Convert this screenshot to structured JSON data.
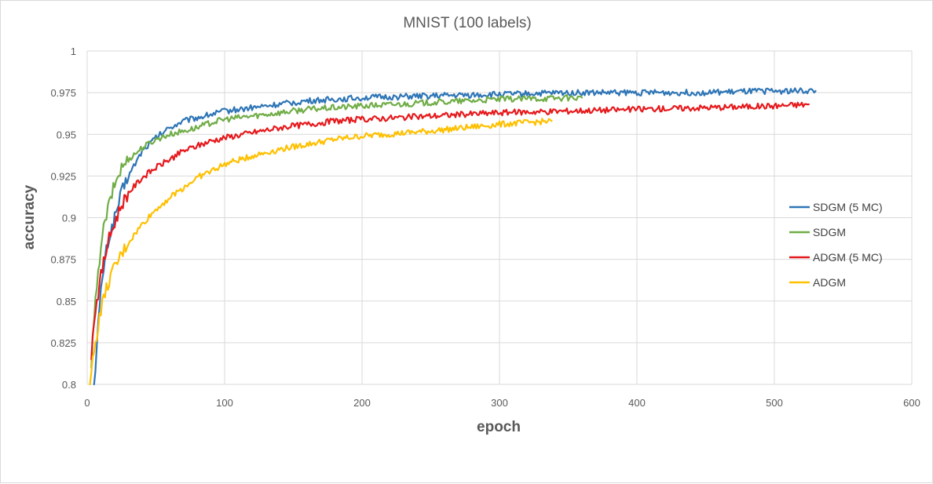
{
  "chart_data": {
    "type": "line",
    "title": "MNIST (100 labels)",
    "xlabel": "epoch",
    "ylabel": "accuracy",
    "xlim": [
      0,
      600
    ],
    "ylim": [
      0.8,
      1
    ],
    "xticks": [
      0,
      100,
      200,
      300,
      400,
      500,
      600
    ],
    "xtick_labels": [
      "0",
      "100",
      "200",
      "300",
      "400",
      "500",
      "600"
    ],
    "yticks": [
      0.8,
      0.825,
      0.85,
      0.875,
      0.9,
      0.925,
      0.95,
      0.975,
      1
    ],
    "ytick_labels": [
      "0.8",
      "0.825",
      "0.85",
      "0.875",
      "0.9",
      "0.925",
      "0.95",
      "0.975",
      "1"
    ],
    "grid": true,
    "legend_position": "right",
    "series": [
      {
        "name": "SDGM (5 MC)",
        "color": "#2e75b6",
        "x": [
          5,
          8,
          10,
          12,
          15,
          20,
          25,
          30,
          40,
          50,
          60,
          70,
          80,
          90,
          100,
          120,
          140,
          160,
          180,
          200,
          250,
          300,
          350,
          400,
          450,
          500,
          530
        ],
        "y": [
          0.8,
          0.835,
          0.855,
          0.87,
          0.885,
          0.9,
          0.915,
          0.925,
          0.94,
          0.948,
          0.954,
          0.958,
          0.96,
          0.962,
          0.964,
          0.966,
          0.968,
          0.97,
          0.971,
          0.972,
          0.973,
          0.974,
          0.975,
          0.975,
          0.975,
          0.976,
          0.976
        ]
      },
      {
        "name": "SDGM",
        "color": "#70ad47",
        "x": [
          3,
          5,
          8,
          10,
          15,
          20,
          25,
          30,
          40,
          50,
          60,
          70,
          80,
          90,
          100,
          120,
          140,
          160,
          180,
          200,
          250,
          300,
          360
        ],
        "y": [
          0.81,
          0.84,
          0.865,
          0.885,
          0.905,
          0.92,
          0.93,
          0.935,
          0.942,
          0.947,
          0.95,
          0.952,
          0.954,
          0.957,
          0.959,
          0.961,
          0.963,
          0.965,
          0.966,
          0.967,
          0.969,
          0.971,
          0.972
        ]
      },
      {
        "name": "ADGM (5 MC)",
        "color": "#e6191c",
        "x": [
          3,
          5,
          8,
          10,
          15,
          20,
          25,
          30,
          40,
          50,
          60,
          70,
          80,
          90,
          100,
          120,
          140,
          160,
          180,
          200,
          250,
          300,
          350,
          400,
          450,
          500,
          525
        ],
        "y": [
          0.815,
          0.84,
          0.855,
          0.865,
          0.885,
          0.897,
          0.908,
          0.915,
          0.924,
          0.93,
          0.935,
          0.94,
          0.943,
          0.946,
          0.948,
          0.951,
          0.954,
          0.956,
          0.958,
          0.959,
          0.961,
          0.963,
          0.964,
          0.965,
          0.966,
          0.967,
          0.968
        ]
      },
      {
        "name": "ADGM",
        "color": "#ffc000",
        "x": [
          2,
          5,
          8,
          10,
          15,
          20,
          25,
          30,
          40,
          50,
          60,
          70,
          80,
          90,
          100,
          120,
          140,
          160,
          180,
          200,
          250,
          300,
          338
        ],
        "y": [
          0.8,
          0.82,
          0.835,
          0.845,
          0.86,
          0.87,
          0.878,
          0.885,
          0.896,
          0.905,
          0.912,
          0.918,
          0.924,
          0.928,
          0.932,
          0.937,
          0.941,
          0.944,
          0.947,
          0.949,
          0.952,
          0.956,
          0.958
        ]
      }
    ]
  }
}
